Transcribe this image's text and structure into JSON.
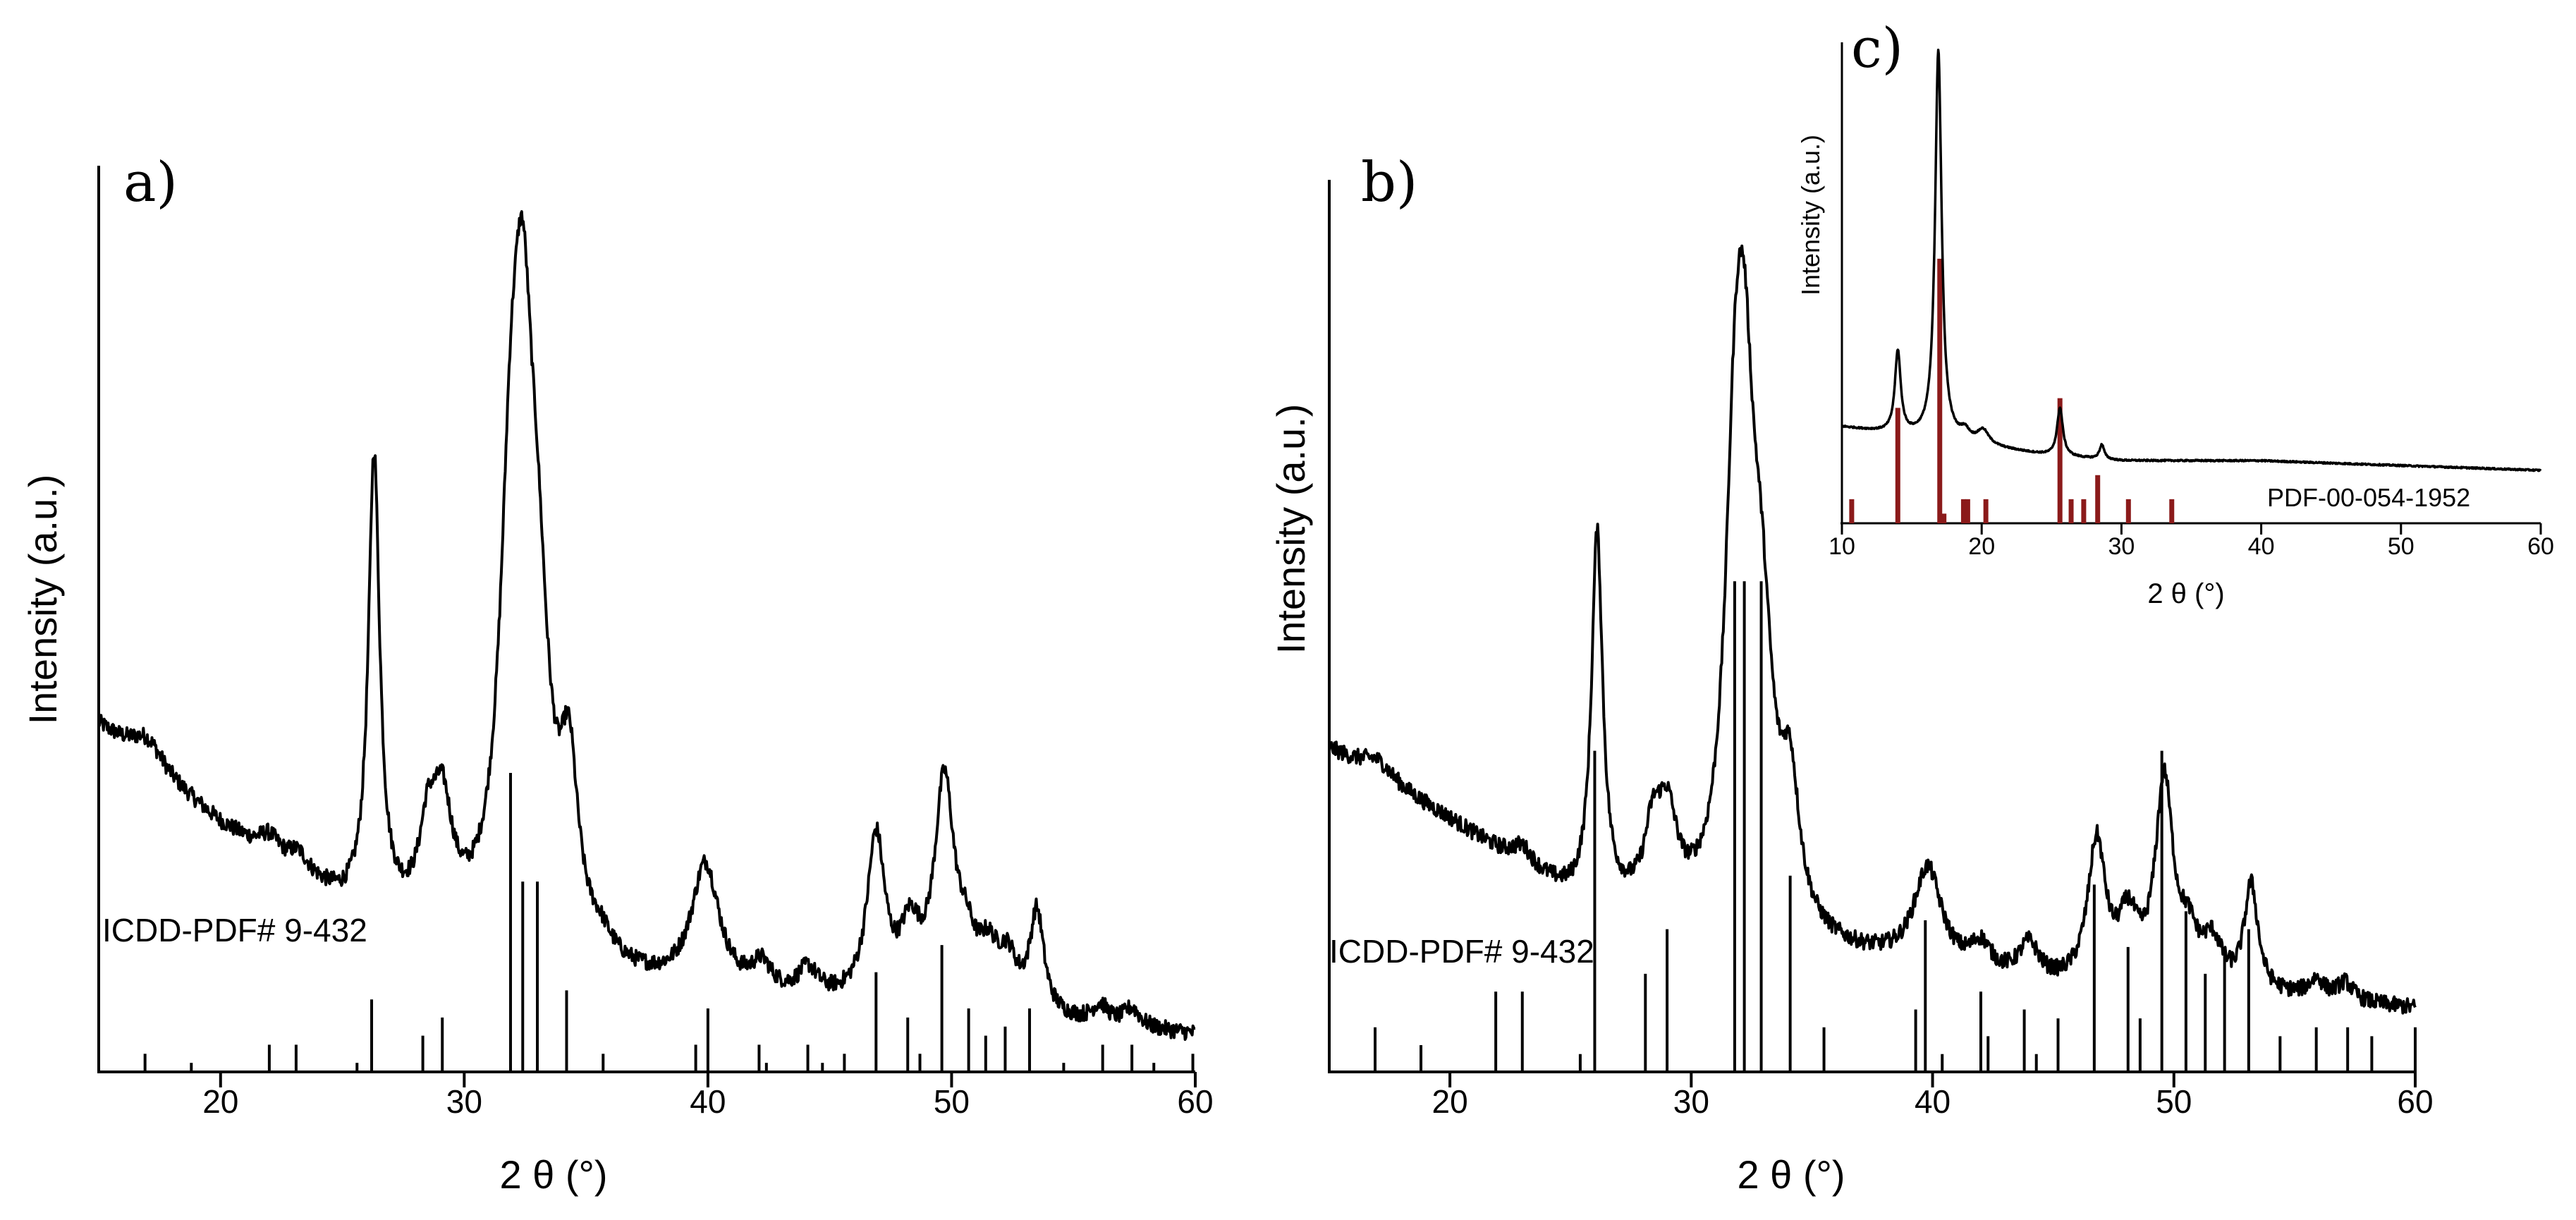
{
  "chart_data": [
    {
      "id": "a",
      "type": "line",
      "panel_label": "a)",
      "xlabel": "2 θ (°)",
      "ylabel": "Intensity (a.u.)",
      "xlim": [
        15,
        60
      ],
      "xticks": [
        20,
        30,
        40,
        50,
        60
      ],
      "ylim": [
        0,
        100
      ],
      "reference_label": "ICDD-PDF# 9-432",
      "pattern_color": "#000000",
      "background": {
        "start": 38,
        "end": 4,
        "knots": [
          [
            15,
            38
          ],
          [
            20,
            27
          ],
          [
            25,
            18
          ],
          [
            30,
            14
          ],
          [
            35,
            10
          ],
          [
            40,
            8
          ],
          [
            45,
            7
          ],
          [
            50,
            6
          ],
          [
            55,
            5
          ],
          [
            60,
            4
          ]
        ]
      },
      "peaks": [
        {
          "x": 17.0,
          "h": 3,
          "w": 0.8
        },
        {
          "x": 22.0,
          "h": 2,
          "w": 0.5
        },
        {
          "x": 23.2,
          "h": 2,
          "w": 0.5
        },
        {
          "x": 26.3,
          "h": 50,
          "w": 0.28
        },
        {
          "x": 28.5,
          "h": 8,
          "w": 0.4
        },
        {
          "x": 29.1,
          "h": 12,
          "w": 0.5
        },
        {
          "x": 31.9,
          "h": 38,
          "w": 0.55
        },
        {
          "x": 32.4,
          "h": 45,
          "w": 0.5
        },
        {
          "x": 33.0,
          "h": 29,
          "w": 0.6
        },
        {
          "x": 34.3,
          "h": 18,
          "w": 0.45
        },
        {
          "x": 35.6,
          "h": 2,
          "w": 0.6
        },
        {
          "x": 39.9,
          "h": 14,
          "w": 0.7
        },
        {
          "x": 42.2,
          "h": 3,
          "w": 0.5
        },
        {
          "x": 44.1,
          "h": 3,
          "w": 0.5
        },
        {
          "x": 46.9,
          "h": 18,
          "w": 0.45
        },
        {
          "x": 48.3,
          "h": 7,
          "w": 0.5
        },
        {
          "x": 49.7,
          "h": 24,
          "w": 0.5
        },
        {
          "x": 50.6,
          "h": 5,
          "w": 0.5
        },
        {
          "x": 51.5,
          "h": 5,
          "w": 0.5
        },
        {
          "x": 52.3,
          "h": 5,
          "w": 0.5
        },
        {
          "x": 53.5,
          "h": 11,
          "w": 0.35
        },
        {
          "x": 56.1,
          "h": 2,
          "w": 0.4
        },
        {
          "x": 57.4,
          "h": 2,
          "w": 0.4
        }
      ],
      "reference_lines": [
        {
          "x": 16.9,
          "h": 2
        },
        {
          "x": 18.8,
          "h": 1
        },
        {
          "x": 22.0,
          "h": 3
        },
        {
          "x": 23.1,
          "h": 3
        },
        {
          "x": 25.6,
          "h": 1
        },
        {
          "x": 26.2,
          "h": 8
        },
        {
          "x": 28.3,
          "h": 4
        },
        {
          "x": 29.1,
          "h": 6
        },
        {
          "x": 31.9,
          "h": 33
        },
        {
          "x": 32.4,
          "h": 21
        },
        {
          "x": 33.0,
          "h": 21
        },
        {
          "x": 34.2,
          "h": 9
        },
        {
          "x": 35.7,
          "h": 2
        },
        {
          "x": 39.5,
          "h": 3
        },
        {
          "x": 40.0,
          "h": 7
        },
        {
          "x": 42.1,
          "h": 3
        },
        {
          "x": 42.4,
          "h": 1
        },
        {
          "x": 44.1,
          "h": 3
        },
        {
          "x": 44.7,
          "h": 1
        },
        {
          "x": 45.6,
          "h": 2
        },
        {
          "x": 46.9,
          "h": 11
        },
        {
          "x": 48.2,
          "h": 6
        },
        {
          "x": 48.7,
          "h": 2
        },
        {
          "x": 49.6,
          "h": 14
        },
        {
          "x": 50.7,
          "h": 7
        },
        {
          "x": 51.4,
          "h": 4
        },
        {
          "x": 52.2,
          "h": 5
        },
        {
          "x": 53.2,
          "h": 7
        },
        {
          "x": 54.6,
          "h": 1
        },
        {
          "x": 56.2,
          "h": 3
        },
        {
          "x": 57.4,
          "h": 3
        },
        {
          "x": 58.3,
          "h": 1
        },
        {
          "x": 59.9,
          "h": 2
        }
      ]
    },
    {
      "id": "b",
      "type": "line",
      "panel_label": "b)",
      "xlabel": "2 θ (°)",
      "ylabel": "Intensity (a.u.)",
      "xlim": [
        15,
        60
      ],
      "xticks": [
        20,
        30,
        40,
        50,
        60
      ],
      "ylim": [
        0,
        100
      ],
      "reference_label": "ICDD-PDF# 9-432",
      "pattern_color": "#000000",
      "background": {
        "start": 36,
        "end": 7,
        "knots": [
          [
            15,
            36
          ],
          [
            20,
            28
          ],
          [
            25,
            19
          ],
          [
            30,
            16
          ],
          [
            35,
            13
          ],
          [
            40,
            11
          ],
          [
            45,
            9
          ],
          [
            50,
            8
          ],
          [
            55,
            8
          ],
          [
            60,
            7
          ]
        ]
      },
      "peaks": [
        {
          "x": 17.0,
          "h": 2,
          "w": 0.8
        },
        {
          "x": 23.0,
          "h": 2,
          "w": 0.5
        },
        {
          "x": 26.1,
          "h": 41,
          "w": 0.28
        },
        {
          "x": 28.4,
          "h": 7,
          "w": 0.4
        },
        {
          "x": 29.0,
          "h": 10,
          "w": 0.5
        },
        {
          "x": 31.8,
          "h": 38,
          "w": 0.5
        },
        {
          "x": 32.2,
          "h": 40,
          "w": 0.5
        },
        {
          "x": 32.9,
          "h": 27,
          "w": 0.6
        },
        {
          "x": 34.1,
          "h": 14,
          "w": 0.45
        },
        {
          "x": 39.8,
          "h": 11,
          "w": 0.7
        },
        {
          "x": 42.0,
          "h": 3,
          "w": 0.5
        },
        {
          "x": 44.0,
          "h": 4,
          "w": 0.5
        },
        {
          "x": 46.8,
          "h": 16,
          "w": 0.45
        },
        {
          "x": 48.1,
          "h": 7,
          "w": 0.5
        },
        {
          "x": 49.6,
          "h": 23,
          "w": 0.45
        },
        {
          "x": 50.6,
          "h": 5,
          "w": 0.5
        },
        {
          "x": 51.6,
          "h": 5,
          "w": 0.5
        },
        {
          "x": 53.2,
          "h": 12,
          "w": 0.35
        },
        {
          "x": 55.9,
          "h": 2,
          "w": 0.4
        },
        {
          "x": 57.1,
          "h": 2,
          "w": 0.4
        }
      ],
      "reference_lines": [
        {
          "x": 16.9,
          "h": 5
        },
        {
          "x": 18.8,
          "h": 3
        },
        {
          "x": 21.9,
          "h": 9
        },
        {
          "x": 23.0,
          "h": 9
        },
        {
          "x": 25.4,
          "h": 2
        },
        {
          "x": 26.0,
          "h": 36
        },
        {
          "x": 28.1,
          "h": 11
        },
        {
          "x": 29.0,
          "h": 16
        },
        {
          "x": 31.8,
          "h": 55
        },
        {
          "x": 32.2,
          "h": 55
        },
        {
          "x": 32.9,
          "h": 55
        },
        {
          "x": 34.1,
          "h": 22
        },
        {
          "x": 35.5,
          "h": 5
        },
        {
          "x": 39.3,
          "h": 7
        },
        {
          "x": 39.7,
          "h": 17
        },
        {
          "x": 40.4,
          "h": 2
        },
        {
          "x": 42.0,
          "h": 9
        },
        {
          "x": 42.3,
          "h": 4
        },
        {
          "x": 43.8,
          "h": 7
        },
        {
          "x": 44.3,
          "h": 2
        },
        {
          "x": 45.2,
          "h": 6
        },
        {
          "x": 46.7,
          "h": 21
        },
        {
          "x": 48.1,
          "h": 14
        },
        {
          "x": 48.6,
          "h": 6
        },
        {
          "x": 49.5,
          "h": 36
        },
        {
          "x": 50.5,
          "h": 18
        },
        {
          "x": 51.3,
          "h": 11
        },
        {
          "x": 52.1,
          "h": 13
        },
        {
          "x": 53.1,
          "h": 16
        },
        {
          "x": 54.4,
          "h": 4
        },
        {
          "x": 55.9,
          "h": 5
        },
        {
          "x": 57.2,
          "h": 5
        },
        {
          "x": 58.2,
          "h": 4
        },
        {
          "x": 60.0,
          "h": 5
        }
      ]
    },
    {
      "id": "c",
      "type": "line",
      "panel_label": "c)",
      "xlabel": "2 θ (°)",
      "ylabel": "Intensity (a.u.)",
      "xlim": [
        10,
        60
      ],
      "xticks": [
        10,
        20,
        30,
        40,
        50,
        60
      ],
      "ylim": [
        0,
        100
      ],
      "reference_label": "PDF-00-054-1952",
      "pattern_color": "#000000",
      "reference_color": "#8b1a1a",
      "background": {
        "start": 20,
        "end": 11,
        "knots": [
          [
            10,
            20
          ],
          [
            15,
            18
          ],
          [
            20,
            16
          ],
          [
            25,
            14
          ],
          [
            30,
            13
          ],
          [
            40,
            13
          ],
          [
            50,
            12
          ],
          [
            60,
            11
          ]
        ]
      },
      "peaks": [
        {
          "x": 14.0,
          "h": 17,
          "w": 0.25
        },
        {
          "x": 16.9,
          "h": 81,
          "w": 0.28
        },
        {
          "x": 18.8,
          "h": 2,
          "w": 0.4
        },
        {
          "x": 20.1,
          "h": 3,
          "w": 0.5
        },
        {
          "x": 25.6,
          "h": 10,
          "w": 0.25
        },
        {
          "x": 28.6,
          "h": 3,
          "w": 0.2
        }
      ],
      "reference_lines": [
        {
          "x": 10.7,
          "h": 5
        },
        {
          "x": 14.0,
          "h": 24
        },
        {
          "x": 17.0,
          "h": 55
        },
        {
          "x": 17.3,
          "h": 2
        },
        {
          "x": 18.7,
          "h": 5
        },
        {
          "x": 19.0,
          "h": 5
        },
        {
          "x": 20.3,
          "h": 5
        },
        {
          "x": 25.6,
          "h": 26
        },
        {
          "x": 26.4,
          "h": 5
        },
        {
          "x": 27.3,
          "h": 5
        },
        {
          "x": 28.3,
          "h": 10
        },
        {
          "x": 30.5,
          "h": 5
        },
        {
          "x": 33.6,
          "h": 5
        }
      ]
    }
  ]
}
